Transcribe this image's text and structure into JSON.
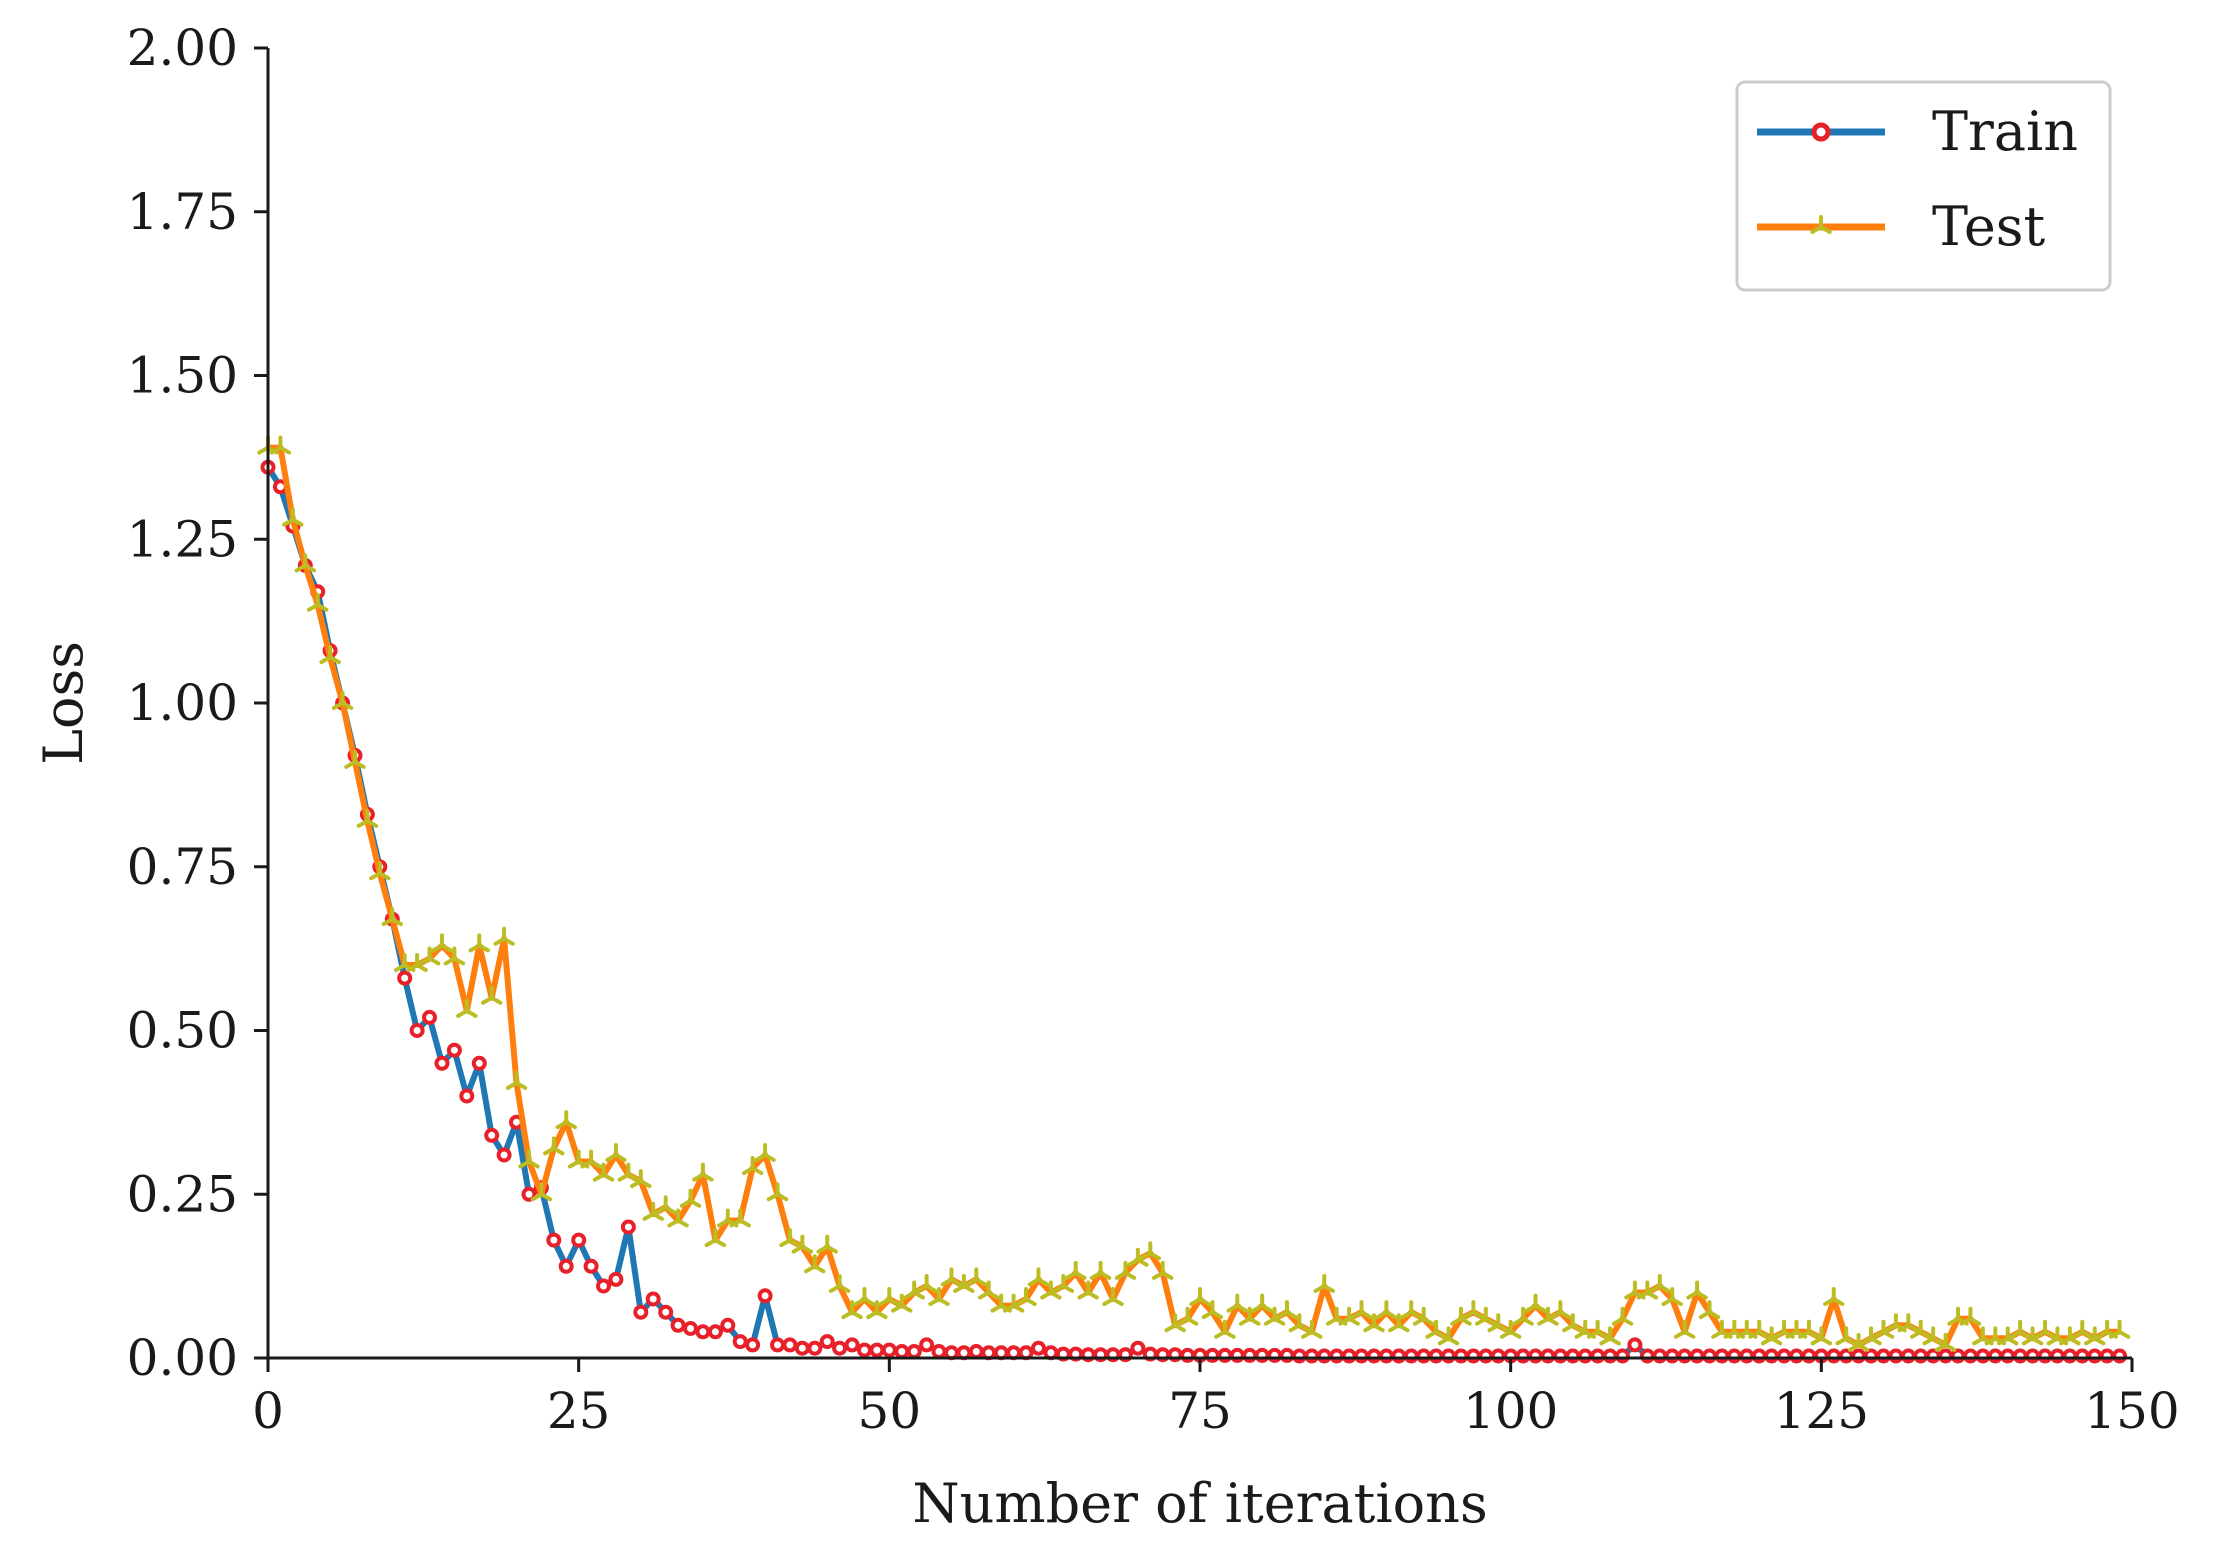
{
  "chart_data": {
    "type": "line",
    "title": "",
    "xlabel": "Number of iterations",
    "ylabel": "Loss",
    "xlim": [
      0,
      150
    ],
    "ylim": [
      0,
      2.0
    ],
    "xticks": [
      0,
      25,
      50,
      75,
      100,
      125,
      150
    ],
    "yticks": [
      0,
      0.25,
      0.5,
      0.75,
      1.0,
      1.25,
      1.5,
      1.75,
      2.0
    ],
    "xtick_labels": [
      "0",
      "25",
      "50",
      "75",
      "100",
      "125",
      "150"
    ],
    "ytick_labels": [
      "0.00",
      "0.25",
      "0.50",
      "0.75",
      "1.00",
      "1.25",
      "1.50",
      "1.75",
      "2.00"
    ],
    "grid": false,
    "legend_position": "top-right",
    "series": [
      {
        "name": "Train",
        "line_color": "#1f77b4",
        "marker": "circle",
        "marker_color": "#e8202a",
        "values": [
          1.36,
          1.33,
          1.27,
          1.21,
          1.17,
          1.08,
          1.0,
          0.92,
          0.83,
          0.75,
          0.67,
          0.58,
          0.5,
          0.52,
          0.45,
          0.47,
          0.4,
          0.45,
          0.34,
          0.31,
          0.36,
          0.25,
          0.26,
          0.18,
          0.14,
          0.18,
          0.14,
          0.11,
          0.12,
          0.2,
          0.07,
          0.09,
          0.07,
          0.05,
          0.045,
          0.04,
          0.04,
          0.05,
          0.025,
          0.02,
          0.095,
          0.02,
          0.02,
          0.015,
          0.015,
          0.025,
          0.015,
          0.02,
          0.012,
          0.012,
          0.012,
          0.01,
          0.01,
          0.02,
          0.01,
          0.008,
          0.008,
          0.01,
          0.008,
          0.008,
          0.008,
          0.008,
          0.015,
          0.008,
          0.006,
          0.006,
          0.005,
          0.005,
          0.005,
          0.005,
          0.015,
          0.006,
          0.005,
          0.005,
          0.004,
          0.004,
          0.004,
          0.004,
          0.004,
          0.004,
          0.004,
          0.004,
          0.004,
          0.003,
          0.003,
          0.003,
          0.003,
          0.003,
          0.003,
          0.003,
          0.003,
          0.003,
          0.003,
          0.003,
          0.003,
          0.003,
          0.003,
          0.003,
          0.003,
          0.003,
          0.003,
          0.003,
          0.003,
          0.003,
          0.003,
          0.003,
          0.003,
          0.003,
          0.003,
          0.003,
          0.02,
          0.003,
          0.003,
          0.003,
          0.003,
          0.003,
          0.003,
          0.003,
          0.003,
          0.003,
          0.003,
          0.003,
          0.003,
          0.003,
          0.003,
          0.003,
          0.003,
          0.003,
          0.003,
          0.003,
          0.003,
          0.003,
          0.003,
          0.003,
          0.003,
          0.003,
          0.003,
          0.003,
          0.003,
          0.003,
          0.003,
          0.003,
          0.003,
          0.003,
          0.003,
          0.003,
          0.003,
          0.003,
          0.003,
          0.003
        ]
      },
      {
        "name": "Test",
        "line_color": "#ff7f0e",
        "marker": "tri",
        "marker_color": "#bcbd22",
        "values": [
          1.39,
          1.39,
          1.28,
          1.21,
          1.15,
          1.07,
          1.0,
          0.91,
          0.82,
          0.74,
          0.67,
          0.6,
          0.6,
          0.61,
          0.63,
          0.61,
          0.53,
          0.63,
          0.55,
          0.64,
          0.42,
          0.3,
          0.25,
          0.32,
          0.36,
          0.3,
          0.3,
          0.28,
          0.31,
          0.28,
          0.27,
          0.22,
          0.23,
          0.21,
          0.24,
          0.28,
          0.18,
          0.21,
          0.21,
          0.29,
          0.31,
          0.25,
          0.18,
          0.17,
          0.14,
          0.17,
          0.11,
          0.07,
          0.09,
          0.07,
          0.09,
          0.08,
          0.1,
          0.11,
          0.09,
          0.12,
          0.11,
          0.12,
          0.1,
          0.08,
          0.08,
          0.09,
          0.12,
          0.1,
          0.11,
          0.13,
          0.1,
          0.13,
          0.09,
          0.13,
          0.15,
          0.16,
          0.13,
          0.05,
          0.06,
          0.09,
          0.07,
          0.04,
          0.08,
          0.06,
          0.08,
          0.06,
          0.07,
          0.05,
          0.04,
          0.11,
          0.06,
          0.06,
          0.07,
          0.05,
          0.07,
          0.05,
          0.07,
          0.06,
          0.04,
          0.03,
          0.06,
          0.07,
          0.06,
          0.05,
          0.04,
          0.06,
          0.08,
          0.06,
          0.07,
          0.05,
          0.04,
          0.04,
          0.03,
          0.06,
          0.1,
          0.1,
          0.11,
          0.09,
          0.04,
          0.1,
          0.07,
          0.04,
          0.04,
          0.04,
          0.04,
          0.03,
          0.04,
          0.04,
          0.04,
          0.03,
          0.09,
          0.03,
          0.02,
          0.03,
          0.04,
          0.05,
          0.05,
          0.04,
          0.03,
          0.02,
          0.06,
          0.06,
          0.03,
          0.03,
          0.03,
          0.04,
          0.03,
          0.04,
          0.03,
          0.03,
          0.04,
          0.03,
          0.04,
          0.04
        ]
      }
    ]
  }
}
